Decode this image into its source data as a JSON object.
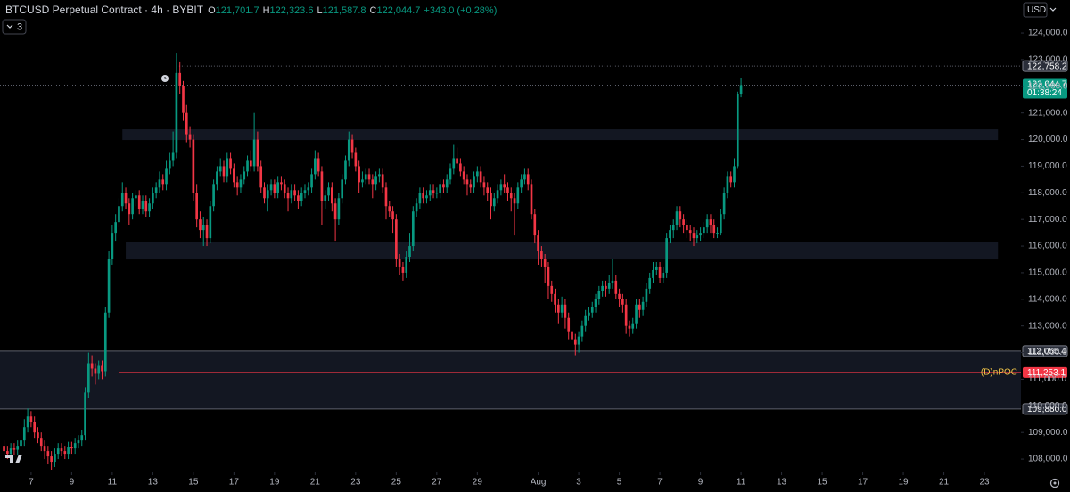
{
  "chart_data": {
    "type": "candlestick",
    "title": "BTCUSD Perpetual Contract · 4h · BYBIT",
    "ohlc_legend": [
      {
        "key": "O",
        "value": "121,701.7"
      },
      {
        "key": "H",
        "value": "122,323.6"
      },
      {
        "key": "L",
        "value": "121,587.8"
      },
      {
        "key": "C",
        "value": "122,044.7"
      }
    ],
    "change": "+343.0 (+0.28%)",
    "currency": "USD",
    "indicator_count": "3",
    "up_color": "#089981",
    "down_color": "#f23645",
    "open": [
      108500,
      108300,
      108200,
      108400,
      108350,
      108500,
      108700,
      109200,
      109600,
      109400,
      109000,
      108800,
      108500,
      108300,
      108100,
      107900,
      108200,
      108400,
      108300,
      108200,
      108450,
      108400,
      108600,
      108700,
      108900,
      110500,
      111600,
      111400,
      111200,
      111500,
      111300,
      113500,
      115500,
      116500,
      116900,
      117500,
      118000,
      117600,
      117200,
      117800,
      117900,
      117400,
      117700,
      117300,
      117600,
      118000,
      118200,
      118500,
      118300,
      118900,
      119200,
      119500,
      122500,
      122000,
      121000,
      120200,
      120000,
      118000,
      117000,
      116600,
      116800,
      116300,
      117500,
      118300,
      118800,
      119000,
      118600,
      119300,
      118900,
      118400,
      118200,
      118500,
      118800,
      119200,
      119000,
      120000,
      119000,
      118200,
      117800,
      118100,
      118300,
      118000,
      118400,
      118300,
      118000,
      117800,
      118100,
      117900,
      117700,
      118000,
      118100,
      118200,
      118700,
      119300,
      118800,
      117700,
      117900,
      118200,
      117600,
      117000,
      117800,
      118500,
      119200,
      120000,
      119500,
      119000,
      118400,
      118500,
      118700,
      118500,
      118300,
      118600,
      118700,
      118200,
      117500,
      117300,
      117000,
      115500,
      115200,
      115000,
      115600,
      116000,
      117300,
      117600,
      118000,
      117800,
      117900,
      118100,
      118000,
      118000,
      118300,
      118200,
      118500,
      118900,
      119300,
      119100,
      118800,
      118500,
      118300,
      118200,
      118600,
      118800,
      118400,
      118200,
      118000,
      117500,
      117800,
      118100,
      118300,
      118200,
      118000,
      117800,
      117600,
      118200,
      118500,
      118700,
      118300,
      117200,
      116400,
      115800,
      115500,
      115200,
      114500,
      114200,
      113800,
      113500,
      113800,
      113300,
      112800,
      112500,
      112300,
      112600,
      113000,
      113400,
      113500,
      113700,
      114000,
      114300,
      114500,
      114400,
      114600,
      114700,
      114200,
      114000,
      113800,
      113000,
      112900,
      113100,
      113800,
      113600,
      113900,
      114400,
      114800,
      115100,
      115200,
      114800,
      115000,
      116300,
      116600,
      116800,
      117300,
      117000,
      116800,
      116600,
      116500,
      116300,
      116400,
      116500,
      116700,
      117000,
      116800,
      116500,
      116500,
      117200,
      118000,
      118600,
      118400,
      119000,
      121701.7
    ],
    "high": [
      108700,
      108500,
      108600,
      108600,
      108700,
      108900,
      109500,
      109900,
      109800,
      109600,
      109200,
      109000,
      108700,
      108500,
      108300,
      108400,
      108600,
      108600,
      108500,
      108650,
      108650,
      108800,
      108900,
      109100,
      110700,
      112000,
      111900,
      111600,
      111700,
      111700,
      113700,
      115800,
      116800,
      117200,
      117800,
      118400,
      118200,
      117800,
      118000,
      118100,
      118100,
      117900,
      117900,
      117800,
      118200,
      118400,
      118800,
      118700,
      119200,
      119500,
      120300,
      123230,
      122900,
      122200,
      121300,
      120500,
      120200,
      118300,
      117300,
      117100,
      117000,
      117700,
      118500,
      119000,
      119300,
      119200,
      119500,
      119500,
      119100,
      118600,
      118700,
      119000,
      119400,
      119600,
      121000,
      120300,
      119200,
      118400,
      118300,
      118500,
      118500,
      118600,
      118600,
      118500,
      118200,
      118300,
      118300,
      118100,
      118200,
      118300,
      118400,
      118900,
      119600,
      119500,
      119000,
      118100,
      118400,
      118400,
      117800,
      118000,
      118700,
      119400,
      120300,
      120200,
      119700,
      119200,
      118800,
      118900,
      118900,
      118700,
      118800,
      118900,
      118900,
      118400,
      117700,
      117500,
      117200,
      115700,
      115400,
      115800,
      116500,
      117500,
      117800,
      118200,
      118200,
      118100,
      118300,
      118300,
      118200,
      118500,
      118500,
      118700,
      119100,
      119800,
      119700,
      119300,
      119000,
      118700,
      118500,
      118800,
      119000,
      119000,
      118600,
      118400,
      118200,
      118000,
      118300,
      118500,
      118700,
      118400,
      118200,
      118000,
      118400,
      118700,
      118900,
      118900,
      118500,
      117400,
      116600,
      116000,
      115700,
      115400,
      114700,
      114400,
      114000,
      114100,
      114000,
      113500,
      113000,
      112700,
      112800,
      113200,
      113600,
      113700,
      113900,
      114200,
      114500,
      114700,
      114700,
      114900,
      115500,
      114900,
      114400,
      114200,
      114000,
      113200,
      113300,
      114000,
      114000,
      114100,
      114600,
      115000,
      115400,
      115400,
      115400,
      115200,
      116500,
      116800,
      117000,
      117500,
      117500,
      117200,
      117000,
      116800,
      116700,
      116600,
      116700,
      116900,
      117200,
      117200,
      117000,
      116700,
      117400,
      118200,
      118800,
      118800,
      119300,
      121800,
      122323.6
    ],
    "low": [
      108100,
      108000,
      108000,
      108150,
      108150,
      108300,
      108500,
      109000,
      109200,
      108800,
      108600,
      108300,
      108000,
      107800,
      107600,
      107700,
      108000,
      108100,
      108000,
      108000,
      108200,
      108200,
      108400,
      108500,
      108700,
      110300,
      111100,
      110800,
      111000,
      111000,
      111100,
      113300,
      115300,
      116200,
      116700,
      117300,
      117400,
      116800,
      117000,
      117500,
      117200,
      117200,
      117100,
      117100,
      117400,
      117800,
      118000,
      118100,
      118100,
      118700,
      119000,
      119300,
      121700,
      120700,
      119900,
      119700,
      117700,
      116700,
      116300,
      116000,
      116000,
      116100,
      117300,
      118100,
      118600,
      118400,
      118400,
      118700,
      118200,
      117900,
      118000,
      118300,
      118600,
      118800,
      118800,
      118800,
      118000,
      117600,
      117300,
      117900,
      117800,
      117800,
      118100,
      117800,
      117300,
      117600,
      117700,
      117400,
      117500,
      117800,
      117900,
      118000,
      118500,
      118600,
      116800,
      117400,
      117700,
      117300,
      116200,
      116800,
      117600,
      118300,
      119000,
      119300,
      118800,
      118000,
      118200,
      118300,
      118300,
      117800,
      118100,
      118400,
      118000,
      117000,
      117100,
      116500,
      115200,
      114900,
      114700,
      114800,
      115400,
      115800,
      117100,
      117400,
      117600,
      117600,
      117700,
      117800,
      117800,
      117800,
      118000,
      118000,
      118300,
      118700,
      118900,
      118600,
      118300,
      117900,
      118000,
      118000,
      118400,
      118200,
      117900,
      117700,
      117000,
      117300,
      117600,
      117900,
      118000,
      117700,
      117300,
      116400,
      117400,
      118000,
      118300,
      118100,
      117000,
      116100,
      115300,
      115200,
      114600,
      114000,
      113900,
      113500,
      113100,
      113300,
      112900,
      112500,
      112200,
      111900,
      112000,
      112400,
      112800,
      113200,
      113300,
      113500,
      113800,
      114100,
      114100,
      114200,
      114400,
      114000,
      113700,
      113500,
      112700,
      112600,
      112700,
      112900,
      113300,
      113400,
      113700,
      114200,
      114600,
      114900,
      114600,
      114600,
      114800,
      116100,
      116300,
      116600,
      116700,
      116500,
      116300,
      116200,
      116000,
      116100,
      116200,
      116300,
      116500,
      116500,
      116300,
      116300,
      116400,
      117000,
      117800,
      118200,
      118200,
      118900,
      121587.8
    ],
    "close": [
      108300,
      108200,
      108400,
      108350,
      108500,
      108700,
      109200,
      109600,
      109400,
      109000,
      108800,
      108500,
      108300,
      108100,
      107900,
      108200,
      108400,
      108300,
      108200,
      108450,
      108400,
      108600,
      108700,
      108900,
      110500,
      111600,
      111400,
      111200,
      111500,
      111300,
      113500,
      115500,
      116500,
      116900,
      117500,
      118000,
      117600,
      117200,
      117800,
      117900,
      117400,
      117700,
      117300,
      117600,
      118000,
      118200,
      118500,
      118300,
      118900,
      119200,
      119500,
      122500,
      122000,
      121000,
      120200,
      120000,
      118000,
      117000,
      116600,
      116800,
      116300,
      117500,
      118300,
      118800,
      119000,
      118600,
      119300,
      118900,
      118400,
      118200,
      118500,
      118800,
      119200,
      119000,
      120000,
      119000,
      118200,
      117800,
      118100,
      118300,
      118000,
      118400,
      118300,
      118000,
      117800,
      118100,
      117900,
      117700,
      118000,
      118100,
      118200,
      118700,
      119300,
      118800,
      117700,
      117900,
      118200,
      117600,
      117000,
      117800,
      118500,
      119200,
      120000,
      119500,
      119000,
      118400,
      118500,
      118700,
      118500,
      118300,
      118600,
      118700,
      118200,
      117500,
      117300,
      117000,
      115500,
      115200,
      115000,
      115600,
      116000,
      117300,
      117600,
      118000,
      117800,
      117900,
      118100,
      118000,
      118000,
      118300,
      118200,
      118500,
      118900,
      119300,
      119100,
      118800,
      118500,
      118300,
      118200,
      118600,
      118800,
      118400,
      118200,
      118000,
      117500,
      117800,
      118100,
      118300,
      118200,
      118000,
      117800,
      117600,
      118200,
      118500,
      118700,
      118300,
      117200,
      116400,
      115800,
      115500,
      115200,
      114500,
      114200,
      113800,
      113500,
      113800,
      113300,
      112800,
      112500,
      112300,
      112600,
      113000,
      113400,
      113500,
      113700,
      114000,
      114300,
      114500,
      114400,
      114600,
      114700,
      114200,
      114000,
      113800,
      113000,
      112900,
      113100,
      113800,
      113600,
      113900,
      114400,
      114800,
      115100,
      115200,
      114800,
      115000,
      116300,
      116600,
      116800,
      117300,
      117000,
      116800,
      116600,
      116500,
      116300,
      116400,
      116500,
      116700,
      117000,
      116800,
      116500,
      116500,
      117200,
      118000,
      118600,
      118400,
      119000,
      121701.7,
      122044.7
    ],
    "xlim": [
      -1.2,
      300.8
    ],
    "xticks": [
      {
        "value": 8,
        "label": "7"
      },
      {
        "value": 20,
        "label": "9"
      },
      {
        "value": 32,
        "label": "11"
      },
      {
        "value": 44,
        "label": "13"
      },
      {
        "value": 56,
        "label": "15"
      },
      {
        "value": 68,
        "label": "17"
      },
      {
        "value": 80,
        "label": "19"
      },
      {
        "value": 92,
        "label": "21"
      },
      {
        "value": 104,
        "label": "23"
      },
      {
        "value": 116,
        "label": "25"
      },
      {
        "value": 128,
        "label": "27"
      },
      {
        "value": 140,
        "label": "29"
      },
      {
        "value": 158,
        "label": "Aug"
      },
      {
        "value": 170,
        "label": "3"
      },
      {
        "value": 182,
        "label": "5"
      },
      {
        "value": 194,
        "label": "7"
      },
      {
        "value": 206,
        "label": "9"
      },
      {
        "value": 218,
        "label": "11"
      },
      {
        "value": 230,
        "label": "13"
      },
      {
        "value": 242,
        "label": "15"
      },
      {
        "value": 254,
        "label": "17"
      },
      {
        "value": 266,
        "label": "19"
      },
      {
        "value": 278,
        "label": "21"
      },
      {
        "value": 290,
        "label": "23"
      }
    ],
    "ylim": [
      107500,
      125240
    ],
    "yticks": [
      {
        "value": 108000,
        "label": "108,000.0"
      },
      {
        "value": 109000,
        "label": "109,000.0"
      },
      {
        "value": 110000,
        "label": "110,000.0"
      },
      {
        "value": 111000,
        "label": "111,000.0"
      },
      {
        "value": 112000,
        "label": "112,000.0"
      },
      {
        "value": 113000,
        "label": "113,000.0"
      },
      {
        "value": 114000,
        "label": "114,000.0"
      },
      {
        "value": 115000,
        "label": "115,000.0"
      },
      {
        "value": 116000,
        "label": "116,000.0"
      },
      {
        "value": 117000,
        "label": "117,000.0"
      },
      {
        "value": 118000,
        "label": "118,000.0"
      },
      {
        "value": 119000,
        "label": "119,000.0"
      },
      {
        "value": 120000,
        "label": "120,000.0"
      },
      {
        "value": 121000,
        "label": "121,000.0"
      },
      {
        "value": 122000,
        "label": "122,000.0"
      },
      {
        "value": 123000,
        "label": "123,000.0"
      },
      {
        "value": 124000,
        "label": "124,000.0"
      }
    ],
    "zones": [
      {
        "top": 120385,
        "bottom": 119983,
        "x_from": 35,
        "x_to": 294
      },
      {
        "top": 116167,
        "bottom": 115498,
        "x_from": 36,
        "x_to": 294
      },
      {
        "top": 112055.4,
        "bottom": 109880.0,
        "x_from": -1.2,
        "x_to": 300.8
      }
    ],
    "levels": [
      {
        "value": 122758.2,
        "label": "122,758.2",
        "style": "dotted",
        "x_from": 51
      },
      {
        "value": 122044.7,
        "label": "122,044.7",
        "countdown": "01:38:24",
        "style": "dotted",
        "color": "#089981",
        "x_from": -1.2
      },
      {
        "value": 112055.4,
        "label": "112,055.4",
        "style": "solid",
        "x_from": -1.2
      },
      {
        "value": 111253.1,
        "label": "111,253.1",
        "name": "(D)nPOC",
        "style": "solid",
        "color": "#f23645",
        "x_from": 34
      },
      {
        "value": 109880.0,
        "label": "109,880.0",
        "style": "solid",
        "x_from": -1.2
      }
    ]
  }
}
